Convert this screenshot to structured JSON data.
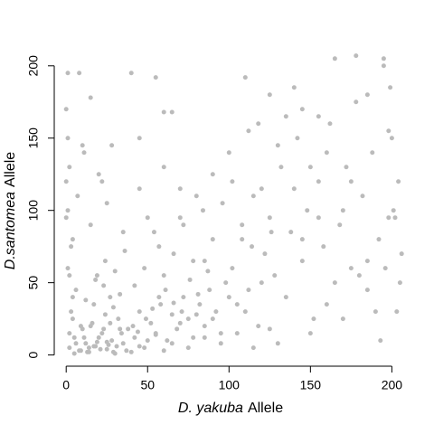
{
  "chart_data": {
    "type": "scatter",
    "x_label": {
      "species": "D. yakuba",
      "word": "Allele"
    },
    "y_label": {
      "species": "D.santomea",
      "word": "Allele"
    },
    "color": "#bbbbbb",
    "xlim": [
      -4,
      207
    ],
    "ylim": [
      -4,
      208
    ],
    "xticks": [
      0,
      50,
      100,
      150,
      200
    ],
    "yticks": [
      0,
      50,
      100,
      150,
      200
    ],
    "x": [
      2,
      5,
      8,
      12,
      15,
      18,
      22,
      25,
      28,
      32,
      35,
      38,
      42,
      45,
      48,
      52,
      55,
      58,
      62,
      65,
      68,
      72,
      75,
      78,
      82,
      85,
      88,
      92,
      95,
      98,
      3,
      6,
      10,
      14,
      17,
      20,
      24,
      27,
      30,
      34,
      1,
      4,
      7,
      11,
      16,
      19,
      23,
      26,
      29,
      33,
      0,
      1,
      2,
      0,
      3,
      1,
      2,
      4,
      0,
      1,
      8,
      15,
      22,
      28,
      40,
      45,
      55,
      60,
      65,
      70,
      102,
      105,
      108,
      112,
      115,
      118,
      122,
      125,
      128,
      132,
      135,
      138,
      142,
      145,
      148,
      152,
      155,
      158,
      162,
      165,
      168,
      172,
      175,
      178,
      182,
      185,
      188,
      192,
      195,
      198,
      200,
      204,
      206,
      203,
      201,
      198,
      205,
      199,
      202,
      196,
      110,
      125,
      140,
      155,
      165,
      178,
      185,
      195,
      135,
      145,
      40,
      45,
      50,
      55,
      60,
      65,
      70,
      75,
      80,
      85,
      90,
      95,
      100,
      105,
      110,
      115,
      120,
      125,
      130,
      85,
      12,
      18,
      24,
      30,
      36,
      42,
      48,
      54,
      60,
      66,
      72,
      78,
      84,
      90,
      96,
      102,
      108,
      114,
      120,
      126,
      5,
      9,
      13,
      17,
      21,
      25,
      29,
      33,
      37,
      41,
      44,
      49,
      53,
      57,
      61,
      66,
      71,
      76,
      81,
      87,
      150,
      160,
      170,
      180,
      190,
      145,
      155,
      175,
      185,
      193,
      2,
      4,
      6,
      9,
      11,
      14,
      19,
      23,
      27,
      31,
      130,
      140,
      150,
      160,
      170,
      100,
      90,
      80,
      112,
      118,
      35,
      50,
      15,
      25,
      60,
      20,
      10,
      45,
      70,
      57
    ],
    "values": [
      5,
      12,
      3,
      8,
      20,
      6,
      15,
      4,
      10,
      25,
      8,
      18,
      12,
      30,
      5,
      22,
      14,
      35,
      10,
      28,
      18,
      40,
      25,
      12,
      35,
      20,
      45,
      30,
      15,
      50,
      30,
      45,
      18,
      2,
      35,
      12,
      28,
      40,
      1,
      15,
      60,
      80,
      110,
      140,
      22,
      55,
      48,
      7,
      33,
      42,
      170,
      195,
      130,
      95,
      75,
      150,
      55,
      40,
      120,
      100,
      195,
      178,
      120,
      145,
      195,
      150,
      192,
      168,
      168,
      115,
      60,
      35,
      80,
      45,
      110,
      20,
      70,
      95,
      55,
      130,
      40,
      85,
      150,
      65,
      100,
      25,
      120,
      75,
      160,
      50,
      90,
      130,
      60,
      175,
      110,
      45,
      140,
      80,
      200,
      95,
      150,
      120,
      70,
      30,
      100,
      155,
      50,
      185,
      95,
      60,
      192,
      180,
      185,
      165,
      205,
      207,
      180,
      205,
      165,
      170,
      2,
      6,
      10,
      15,
      3,
      8,
      22,
      5,
      28,
      12,
      25,
      8,
      40,
      15,
      30,
      5,
      50,
      18,
      8,
      65,
      38,
      52,
      65,
      58,
      72,
      48,
      60,
      85,
      55,
      70,
      90,
      65,
      100,
      80,
      105,
      120,
      90,
      75,
      115,
      85,
      1,
      3,
      2,
      6,
      4,
      9,
      2,
      18,
      3,
      20,
      16,
      25,
      32,
      40,
      45,
      36,
      30,
      52,
      42,
      58,
      15,
      35,
      25,
      55,
      30,
      80,
      95,
      120,
      65,
      10,
      15,
      25,
      8,
      20,
      12,
      5,
      9,
      18,
      22,
      6,
      145,
      115,
      130,
      140,
      100,
      140,
      125,
      110,
      155,
      160,
      85,
      95,
      90,
      105,
      130,
      125,
      145,
      115,
      95,
      75
    ]
  }
}
